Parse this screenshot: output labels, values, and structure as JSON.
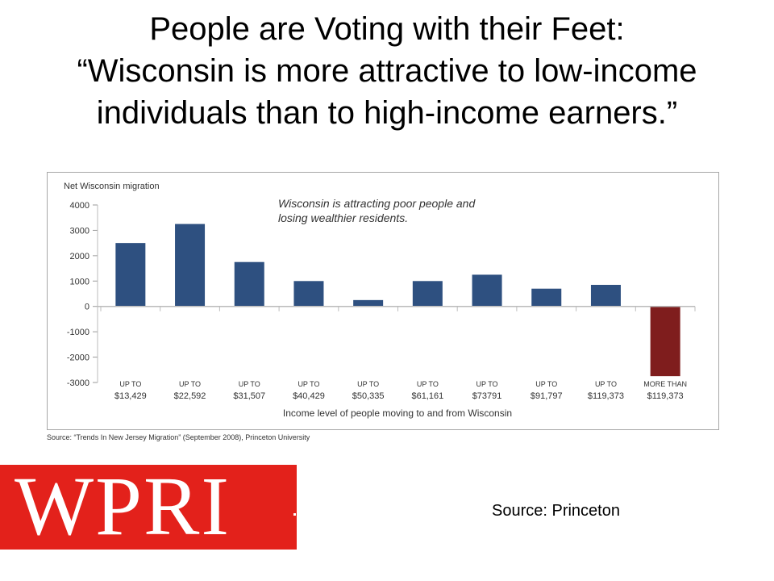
{
  "slide": {
    "title_lines": [
      "People are Voting with their Feet:",
      "“Wisconsin is more attractive to low-income",
      "individuals than to high-income earners.”"
    ],
    "chart_source": "Source: “Trends In New Jersey Migration” (September 2008), Princeton University",
    "logo_text": "WPRI",
    "source_note": "Source: Princeton"
  },
  "chart_data": {
    "type": "bar",
    "title": "",
    "annotation": [
      "Wisconsin is attracting poor people and",
      "losing wealthier residents."
    ],
    "ylabel": "Net Wisconsin migration",
    "xlabel": "Income level of people moving to and from Wisconsin",
    "ylim": [
      -3000,
      4000
    ],
    "yticks": [
      4000,
      3000,
      2000,
      1000,
      0,
      -1000,
      -2000,
      -3000
    ],
    "categories": [
      [
        "UP TO",
        "$13,429"
      ],
      [
        "UP TO",
        "$22,592"
      ],
      [
        "UP TO",
        "$31,507"
      ],
      [
        "UP TO",
        "$40,429"
      ],
      [
        "UP TO",
        "$50,335"
      ],
      [
        "UP TO",
        "$61,161"
      ],
      [
        "UP TO",
        "$73791"
      ],
      [
        "UP TO",
        "$91,797"
      ],
      [
        "UP TO",
        "$119,373"
      ],
      [
        "MORE THAN",
        "$119,373"
      ]
    ],
    "values": [
      2500,
      3250,
      1750,
      1000,
      250,
      1000,
      1250,
      700,
      850,
      -2750
    ],
    "colors": {
      "positive": "#2e5080",
      "negative": "#7f1d1d"
    },
    "grid": false
  }
}
